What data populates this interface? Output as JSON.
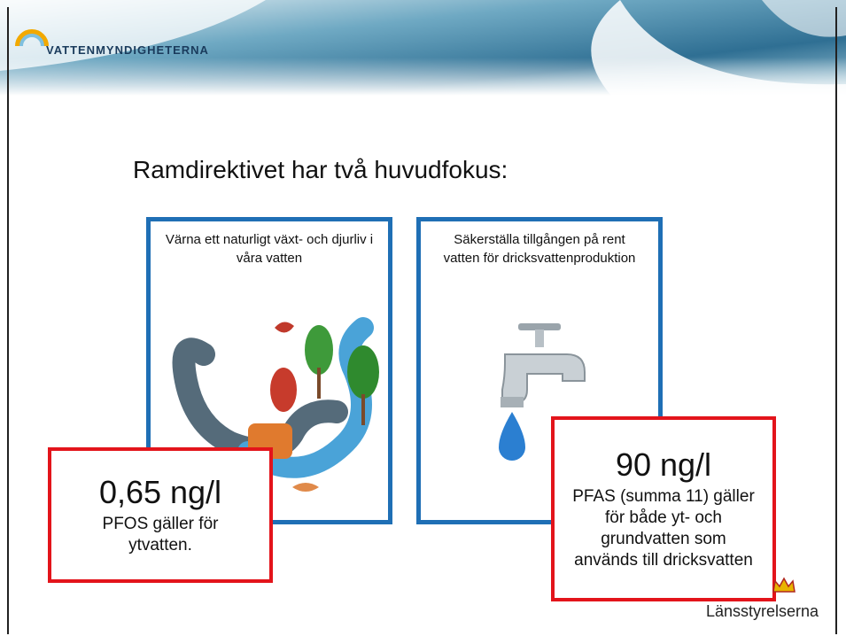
{
  "header": {
    "logo": "VATTENMYNDIGHETERNA"
  },
  "title": "Ramdirektivet har två huvudfokus:",
  "boxes": [
    {
      "text": "Värna ett naturligt växt- och djurliv i våra vatten"
    },
    {
      "text": "Säkerställa tillgången på rent vatten för dricksvattenproduktion"
    }
  ],
  "highlights": [
    {
      "value": "0,65 ng/l",
      "text": "PFOS gäller för ytvatten."
    },
    {
      "value": "90 ng/l",
      "text": "PFAS (summa 11) gäller för både yt- och grundvatten som används till dricksvatten"
    }
  ],
  "footer": {
    "logo": "Länsstyrelserna"
  }
}
